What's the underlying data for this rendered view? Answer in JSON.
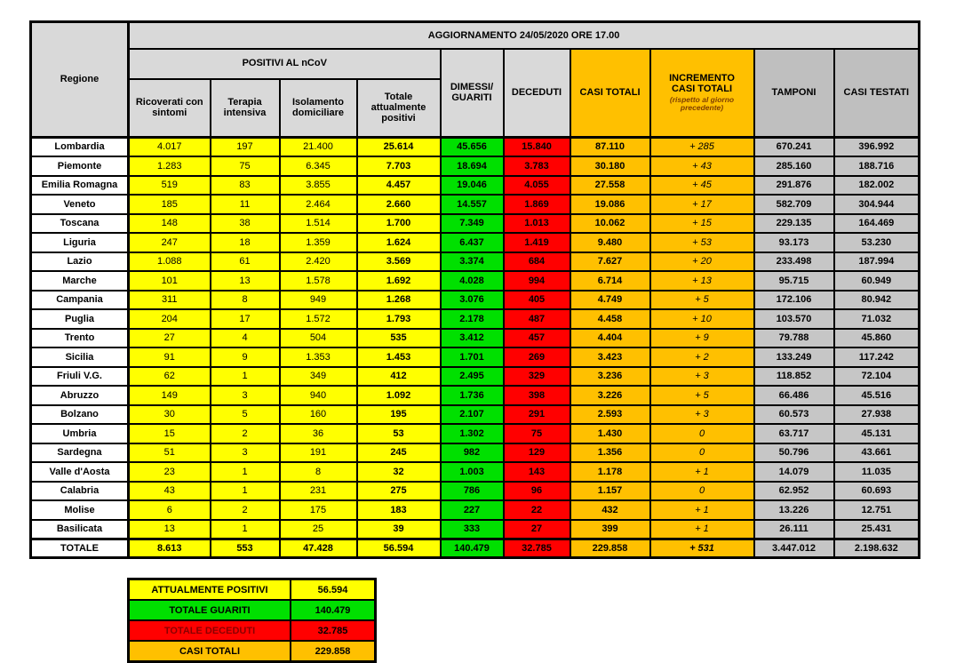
{
  "title": "AGGIORNAMENTO 24/05/2020 ORE 17.00",
  "colors": {
    "yellow": "#ffff00",
    "green": "#00e000",
    "red": "#ff0000",
    "orange": "#ffc000",
    "header_gray": "#d9d9d9",
    "dark_gray": "#bfbfbf",
    "cell_gray": "#c6c6c6",
    "note_brown": "#7f3f00",
    "deceduti_label": "#8b0000"
  },
  "table": {
    "header": {
      "region": "Regione",
      "group_positivi": "POSITIVI AL nCoV",
      "sub_ricoverati": "Ricoverati con sintomi",
      "sub_terapia": "Terapia intensiva",
      "sub_isolamento": "Isolamento domiciliare",
      "sub_totale_positivi": "Totale attualmente positivi",
      "dimessi": "DIMESSI/\nGUARITI",
      "deceduti": "DECEDUTI",
      "casi_totali": "CASI TOTALI",
      "incremento_title": "INCREMENTO\nCASI  TOTALI",
      "incremento_note": "(rispetto al giorno precedente)",
      "tamponi": "TAMPONI",
      "casi_testati": "CASI TESTATI"
    },
    "rows": [
      {
        "region": "Lombardia",
        "values": [
          "4.017",
          "197",
          "21.400",
          "25.614",
          "45.656",
          "15.840",
          "87.110",
          "+ 285",
          "670.241",
          "396.992"
        ]
      },
      {
        "region": "Piemonte",
        "values": [
          "1.283",
          "75",
          "6.345",
          "7.703",
          "18.694",
          "3.783",
          "30.180",
          "+ 43",
          "285.160",
          "188.716"
        ]
      },
      {
        "region": "Emilia Romagna",
        "values": [
          "519",
          "83",
          "3.855",
          "4.457",
          "19.046",
          "4.055",
          "27.558",
          "+ 45",
          "291.876",
          "182.002"
        ]
      },
      {
        "region": "Veneto",
        "values": [
          "185",
          "11",
          "2.464",
          "2.660",
          "14.557",
          "1.869",
          "19.086",
          "+ 17",
          "582.709",
          "304.944"
        ]
      },
      {
        "region": "Toscana",
        "values": [
          "148",
          "38",
          "1.514",
          "1.700",
          "7.349",
          "1.013",
          "10.062",
          "+ 15",
          "229.135",
          "164.469"
        ]
      },
      {
        "region": "Liguria",
        "values": [
          "247",
          "18",
          "1.359",
          "1.624",
          "6.437",
          "1.419",
          "9.480",
          "+ 53",
          "93.173",
          "53.230"
        ]
      },
      {
        "region": "Lazio",
        "values": [
          "1.088",
          "61",
          "2.420",
          "3.569",
          "3.374",
          "684",
          "7.627",
          "+ 20",
          "233.498",
          "187.994"
        ]
      },
      {
        "region": "Marche",
        "values": [
          "101",
          "13",
          "1.578",
          "1.692",
          "4.028",
          "994",
          "6.714",
          "+ 13",
          "95.715",
          "60.949"
        ]
      },
      {
        "region": "Campania",
        "values": [
          "311",
          "8",
          "949",
          "1.268",
          "3.076",
          "405",
          "4.749",
          "+ 5",
          "172.106",
          "80.942"
        ]
      },
      {
        "region": "Puglia",
        "values": [
          "204",
          "17",
          "1.572",
          "1.793",
          "2.178",
          "487",
          "4.458",
          "+ 10",
          "103.570",
          "71.032"
        ]
      },
      {
        "region": "Trento",
        "values": [
          "27",
          "4",
          "504",
          "535",
          "3.412",
          "457",
          "4.404",
          "+ 9",
          "79.788",
          "45.860"
        ]
      },
      {
        "region": "Sicilia",
        "values": [
          "91",
          "9",
          "1.353",
          "1.453",
          "1.701",
          "269",
          "3.423",
          "+ 2",
          "133.249",
          "117.242"
        ]
      },
      {
        "region": "Friuli V.G.",
        "values": [
          "62",
          "1",
          "349",
          "412",
          "2.495",
          "329",
          "3.236",
          "+ 3",
          "118.852",
          "72.104"
        ]
      },
      {
        "region": "Abruzzo",
        "values": [
          "149",
          "3",
          "940",
          "1.092",
          "1.736",
          "398",
          "3.226",
          "+ 5",
          "66.486",
          "45.516"
        ]
      },
      {
        "region": "Bolzano",
        "values": [
          "30",
          "5",
          "160",
          "195",
          "2.107",
          "291",
          "2.593",
          "+ 3",
          "60.573",
          "27.938"
        ]
      },
      {
        "region": "Umbria",
        "values": [
          "15",
          "2",
          "36",
          "53",
          "1.302",
          "75",
          "1.430",
          "0",
          "63.717",
          "45.131"
        ]
      },
      {
        "region": "Sardegna",
        "values": [
          "51",
          "3",
          "191",
          "245",
          "982",
          "129",
          "1.356",
          "0",
          "50.796",
          "43.661"
        ]
      },
      {
        "region": "Valle d'Aosta",
        "values": [
          "23",
          "1",
          "8",
          "32",
          "1.003",
          "143",
          "1.178",
          "+ 1",
          "14.079",
          "11.035"
        ]
      },
      {
        "region": "Calabria",
        "values": [
          "43",
          "1",
          "231",
          "275",
          "786",
          "96",
          "1.157",
          "0",
          "62.952",
          "60.693"
        ]
      },
      {
        "region": "Molise",
        "values": [
          "6",
          "2",
          "175",
          "183",
          "227",
          "22",
          "432",
          "+ 1",
          "13.226",
          "12.751"
        ]
      },
      {
        "region": "Basilicata",
        "values": [
          "13",
          "1",
          "25",
          "39",
          "333",
          "27",
          "399",
          "+ 1",
          "26.111",
          "25.431"
        ]
      }
    ],
    "total_row": {
      "region": "TOTALE",
      "values": [
        "8.613",
        "553",
        "47.428",
        "56.594",
        "140.479",
        "32.785",
        "229.858",
        "+ 531",
        "3.447.012",
        "2.198.632"
      ]
    }
  },
  "summary": {
    "rows": [
      {
        "label": "ATTUALMENTE POSITIVI",
        "value": "56.594",
        "bg": "#ffff00",
        "label_color": "#000000"
      },
      {
        "label": "TOTALE GUARITI",
        "value": "140.479",
        "bg": "#00e000",
        "label_color": "#000000"
      },
      {
        "label": "TOTALE DECEDUTI",
        "value": "32.785",
        "bg": "#ff0000",
        "label_color": "#8b0000"
      },
      {
        "label": "CASI TOTALI",
        "value": "229.858",
        "bg": "#ffc000",
        "label_color": "#000000"
      }
    ]
  },
  "chart_data": {
    "type": "table",
    "title": "AGGIORNAMENTO 24/05/2020 ORE 17.00",
    "columns": [
      "Regione",
      "Ricoverati con sintomi",
      "Terapia intensiva",
      "Isolamento domiciliare",
      "Totale attualmente positivi",
      "Dimessi/Guariti",
      "Deceduti",
      "Casi totali",
      "Incremento casi totali (rispetto al giorno precedente)",
      "Tamponi",
      "Casi testati"
    ],
    "rows": [
      [
        "Lombardia",
        4017,
        197,
        21400,
        25614,
        45656,
        15840,
        87110,
        285,
        670241,
        396992
      ],
      [
        "Piemonte",
        1283,
        75,
        6345,
        7703,
        18694,
        3783,
        30180,
        43,
        285160,
        188716
      ],
      [
        "Emilia Romagna",
        519,
        83,
        3855,
        4457,
        19046,
        4055,
        27558,
        45,
        291876,
        182002
      ],
      [
        "Veneto",
        185,
        11,
        2464,
        2660,
        14557,
        1869,
        19086,
        17,
        582709,
        304944
      ],
      [
        "Toscana",
        148,
        38,
        1514,
        1700,
        7349,
        1013,
        10062,
        15,
        229135,
        164469
      ],
      [
        "Liguria",
        247,
        18,
        1359,
        1624,
        6437,
        1419,
        9480,
        53,
        93173,
        53230
      ],
      [
        "Lazio",
        1088,
        61,
        2420,
        3569,
        3374,
        684,
        7627,
        20,
        233498,
        187994
      ],
      [
        "Marche",
        101,
        13,
        1578,
        1692,
        4028,
        994,
        6714,
        13,
        95715,
        60949
      ],
      [
        "Campania",
        311,
        8,
        949,
        1268,
        3076,
        405,
        4749,
        5,
        172106,
        80942
      ],
      [
        "Puglia",
        204,
        17,
        1572,
        1793,
        2178,
        487,
        4458,
        10,
        103570,
        71032
      ],
      [
        "Trento",
        27,
        4,
        504,
        535,
        3412,
        457,
        4404,
        9,
        79788,
        45860
      ],
      [
        "Sicilia",
        91,
        9,
        1353,
        1453,
        1701,
        269,
        3423,
        2,
        133249,
        117242
      ],
      [
        "Friuli V.G.",
        62,
        1,
        349,
        412,
        2495,
        329,
        3236,
        3,
        118852,
        72104
      ],
      [
        "Abruzzo",
        149,
        3,
        940,
        1092,
        1736,
        398,
        3226,
        5,
        66486,
        45516
      ],
      [
        "Bolzano",
        30,
        5,
        160,
        195,
        2107,
        291,
        2593,
        3,
        60573,
        27938
      ],
      [
        "Umbria",
        15,
        2,
        36,
        53,
        1302,
        75,
        1430,
        0,
        63717,
        45131
      ],
      [
        "Sardegna",
        51,
        3,
        191,
        245,
        982,
        129,
        1356,
        0,
        50796,
        43661
      ],
      [
        "Valle d'Aosta",
        23,
        1,
        8,
        32,
        1003,
        143,
        1178,
        1,
        14079,
        11035
      ],
      [
        "Calabria",
        43,
        1,
        231,
        275,
        786,
        96,
        1157,
        0,
        62952,
        60693
      ],
      [
        "Molise",
        6,
        2,
        175,
        183,
        227,
        22,
        432,
        1,
        13226,
        12751
      ],
      [
        "Basilicata",
        13,
        1,
        25,
        39,
        333,
        27,
        399,
        1,
        26111,
        25431
      ],
      [
        "TOTALE",
        8613,
        553,
        47428,
        56594,
        140479,
        32785,
        229858,
        531,
        3447012,
        2198632
      ]
    ],
    "summary": {
      "attualmente_positivi": 56594,
      "totale_guariti": 140479,
      "totale_deceduti": 32785,
      "casi_totali": 229858
    }
  }
}
